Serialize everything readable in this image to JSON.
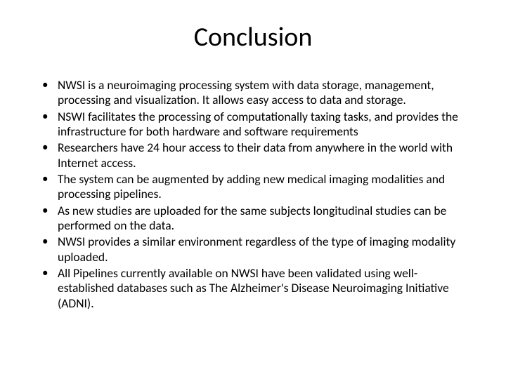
{
  "slide": {
    "title": "Conclusion",
    "title_fontsize": 38,
    "body_fontsize": 17.5,
    "background_color": "#ffffff",
    "text_color": "#000000",
    "bullets": [
      "NWSI is a neuroimaging processing system with data storage, management, processing and visualization. It allows easy access to data and storage.",
      "NSWI facilitates the processing of computationally taxing tasks, and provides the infrastructure for both hardware and software requirements",
      "Researchers have 24 hour access to their data from anywhere in the world with Internet access.",
      " The system can be augmented by adding new medical imaging modalities and processing pipelines.",
      "As new studies are uploaded for the same subjects longitudinal studies can be performed on the data.",
      "NWSI provides a similar environment regardless of the type of imaging modality uploaded.",
      "All Pipelines currently available on NWSI have been validated using well-established databases such as The Alzheimer's Disease Neuroimaging Initiative (ADNI)."
    ]
  }
}
